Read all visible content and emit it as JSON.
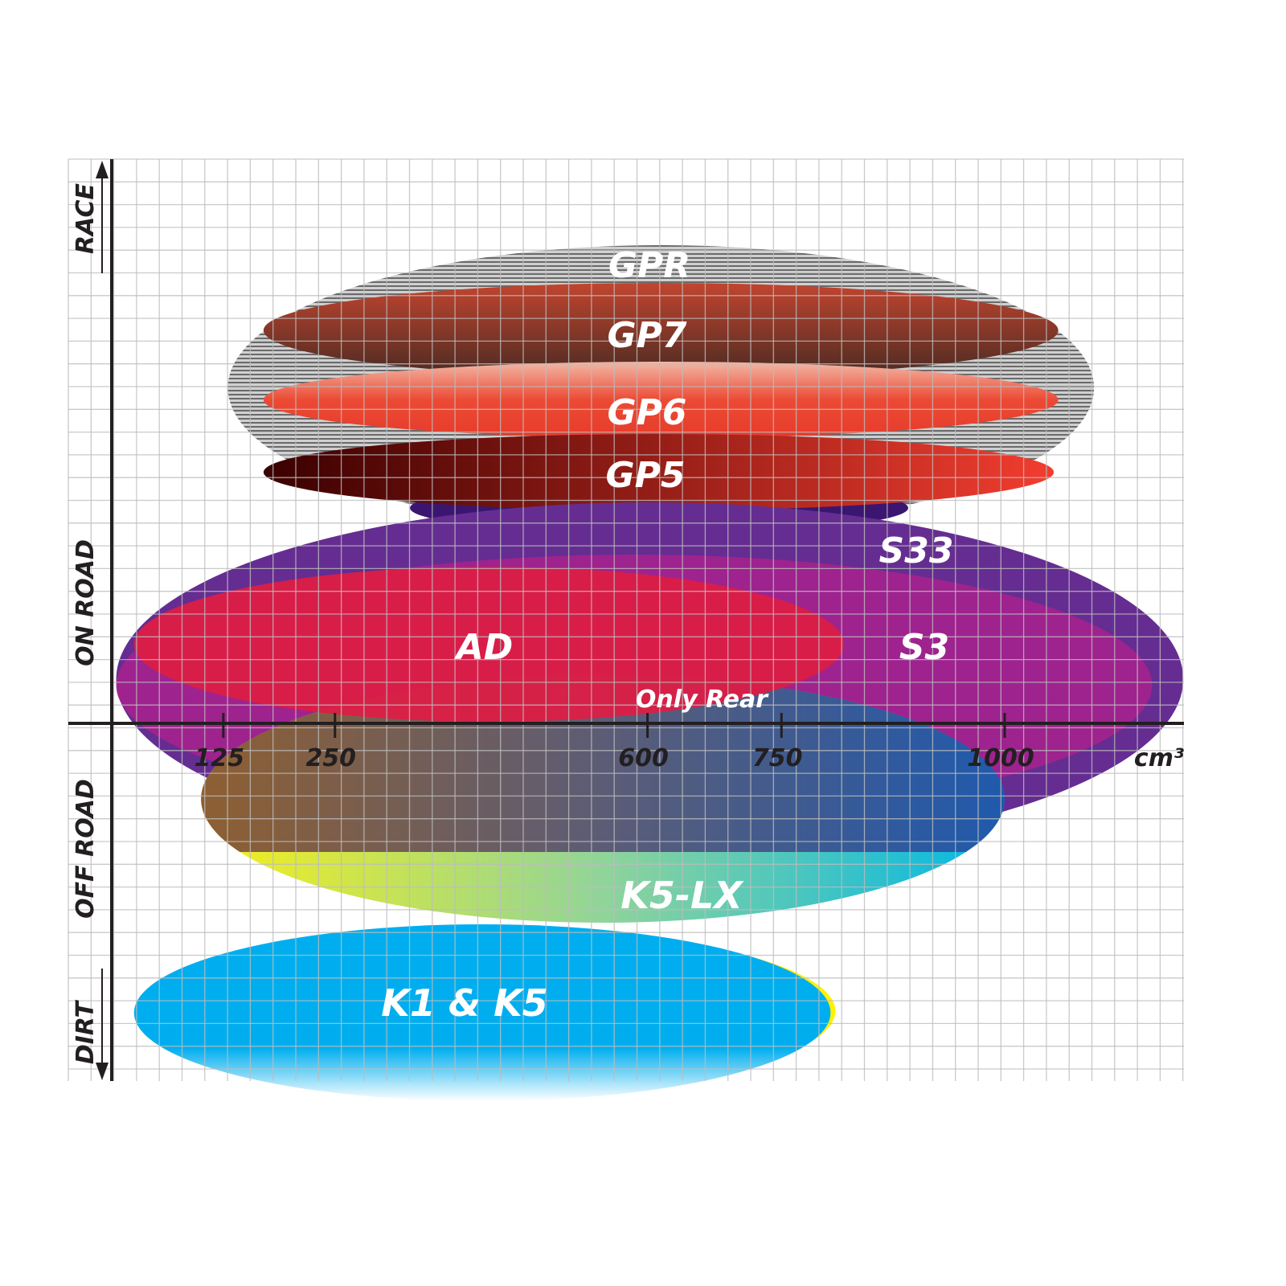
{
  "chart_data": {
    "type": "positioning",
    "xlabel": "cm³",
    "x_ticks": [
      125,
      250,
      600,
      750,
      1000
    ],
    "y_categories": [
      "RACE",
      "ON ROAD",
      "OFF ROAD",
      "DIRT"
    ],
    "grid": true,
    "series": [
      {
        "name": "GPR",
        "cc_range": [
          130,
          1100
        ],
        "color": "#9a9a9a",
        "style": "striped"
      },
      {
        "name": "GP7",
        "cc_range": [
          170,
          1060
        ],
        "color": "#7a3a2c"
      },
      {
        "name": "GP6",
        "cc_range": [
          170,
          1060
        ],
        "color": "#e8422f"
      },
      {
        "name": "GP5",
        "cc_range": [
          170,
          1055
        ],
        "color": "#6a0a08"
      },
      {
        "name": "S33",
        "cc_range": [
          5,
          1200
        ],
        "color": "#652d91"
      },
      {
        "name": "S3",
        "cc_range": [
          5,
          1165
        ],
        "color": "#a3238e"
      },
      {
        "name": "AD",
        "cc_range": [
          25,
          820
        ],
        "color": "#dc1e46"
      },
      {
        "name": "K5-LX",
        "cc_range": [
          100,
          1000
        ],
        "color": "#00b5d8",
        "note": "Only Rear"
      },
      {
        "name": "K1 & K5",
        "cc_range": [
          25,
          805
        ],
        "color": "#00aeef"
      }
    ]
  }
}
